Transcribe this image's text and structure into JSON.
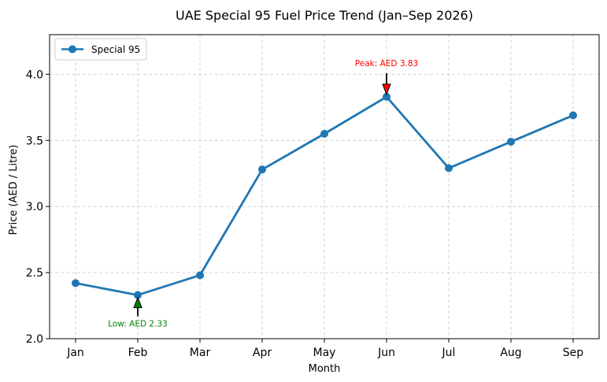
{
  "chart_data": {
    "type": "line",
    "title": "UAE Special 95 Fuel Price Trend (Jan–Sep 2026)",
    "xlabel": "Month",
    "ylabel": "Price (AED / Litre)",
    "categories": [
      "Jan",
      "Feb",
      "Mar",
      "Apr",
      "May",
      "Jun",
      "Jul",
      "Aug",
      "Sep"
    ],
    "series": [
      {
        "name": "Special 95",
        "values": [
          2.42,
          2.33,
          2.48,
          3.28,
          3.55,
          3.83,
          3.29,
          3.49,
          3.69
        ],
        "color": "#1f77b4"
      }
    ],
    "ylim": [
      2.0,
      4.3
    ],
    "yticks": [
      "2.0",
      "2.5",
      "3.0",
      "3.5",
      "4.0"
    ],
    "grid": true,
    "legend_position": "top-left",
    "annotations": [
      {
        "text": "Peak: AED 3.83",
        "category": "Jun",
        "value": 3.83,
        "color": "#ff0000",
        "arrow_color": "#ff0000",
        "direction": "above"
      },
      {
        "text": "Low: AED 2.33",
        "category": "Feb",
        "value": 2.33,
        "color": "#008000",
        "arrow_color": "#008000",
        "direction": "below"
      }
    ]
  }
}
